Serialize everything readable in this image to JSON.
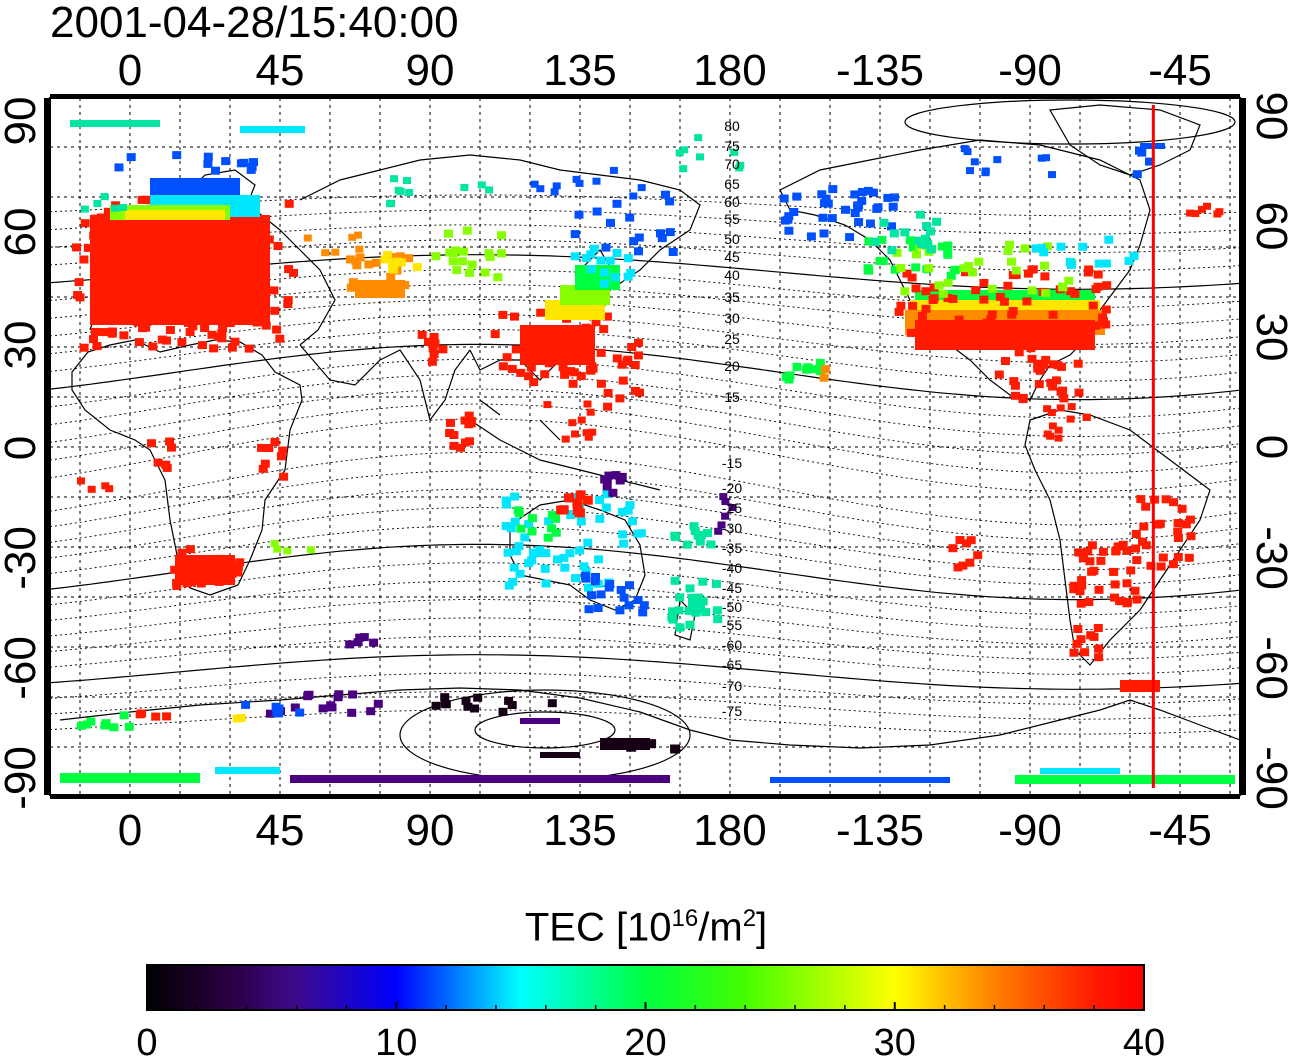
{
  "timestamp": "2001-04-28/15:40:00",
  "map": {
    "top_axis_labels": [
      "0",
      "45",
      "90",
      "135",
      "180",
      "-135",
      "-90",
      "-45"
    ],
    "bottom_axis_labels": [
      "0",
      "45",
      "90",
      "135",
      "180",
      "-135",
      "-90",
      "-45"
    ],
    "left_axis_labels": [
      "90",
      "60",
      "30",
      "0",
      "-30",
      "-60",
      "-90"
    ],
    "right_axis_labels": [
      "90",
      "60",
      "30",
      "0",
      "-30",
      "-60",
      "-90"
    ],
    "magnetic_latitude_labels_north": [
      "80",
      "75",
      "70",
      "65",
      "60",
      "55",
      "50",
      "45",
      "40",
      "35",
      "30",
      "25",
      "20",
      "15"
    ],
    "magnetic_latitude_labels_south": [
      "-15",
      "-20",
      "-25",
      "-30",
      "-35",
      "-40",
      "-45",
      "-50",
      "-55",
      "-60",
      "-65",
      "-70",
      "-75"
    ],
    "terminator_line_longitude": -53,
    "terminator_color": "#ff0000"
  },
  "colorbar": {
    "title_text": "TEC  [10",
    "title_sup1": "16",
    "title_mid": "/m",
    "title_sup2": "2",
    "title_end": "]",
    "min": 0,
    "max": 40,
    "tick_labels": [
      "0",
      "10",
      "20",
      "30",
      "40"
    ],
    "colors": [
      "#000000",
      "#4b0082",
      "#0000ff",
      "#00ffff",
      "#00ff00",
      "#ffff00",
      "#ff0000"
    ]
  }
}
